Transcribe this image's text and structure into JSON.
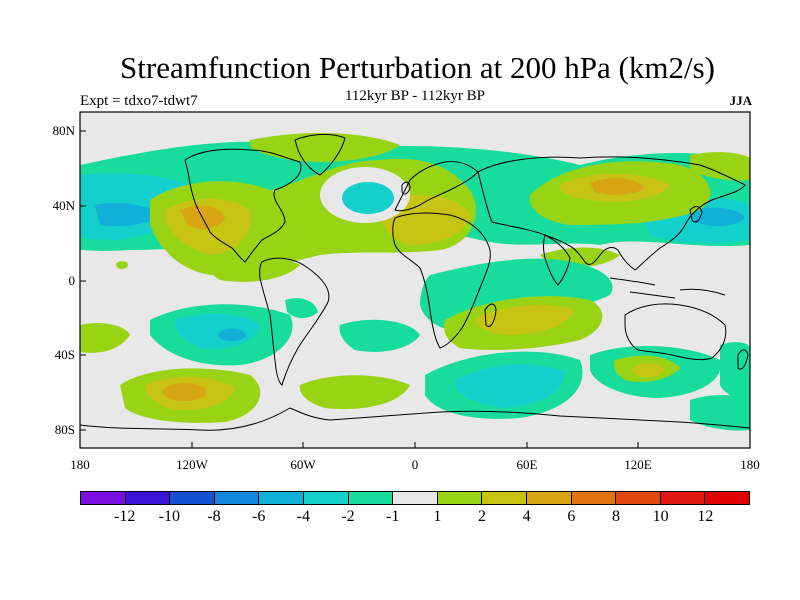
{
  "title": "Streamfunction Perturbation at 200 hPa (km2/s)",
  "subtitle_left": "Expt = tdxo7-tdwt7",
  "subtitle_center": "112kyr BP - 112kyr BP",
  "subtitle_right": "JJA",
  "map_data": {
    "region": "Global (180W-180E, 90S-90N)",
    "lat_ticks": [
      "80N",
      "40N",
      "0",
      "40S",
      "80S"
    ],
    "lon_ticks": [
      "180",
      "120W",
      "60W",
      "0",
      "60E",
      "120E",
      "180"
    ]
  },
  "colorbar": {
    "labels": [
      "-12",
      "-10",
      "-8",
      "-6",
      "-4",
      "-2",
      "-1",
      "1",
      "2",
      "4",
      "6",
      "8",
      "10",
      "12"
    ],
    "colors": [
      "#7a0ee0",
      "#3a14d8",
      "#1450d0",
      "#1488dc",
      "#10b0d8",
      "#14d0cc",
      "#18dc9c",
      "#e8e8e8",
      "#98d414",
      "#c8c414",
      "#d8a414",
      "#e07410",
      "#e04810",
      "#e01810",
      "#e00000"
    ]
  },
  "palette": {
    "bg_field": "#e8e8e8",
    "neg_weak": "#18dc9c",
    "neg_mid": "#14d0cc",
    "neg_strong": "#10b0d8",
    "pos_weak": "#98d414",
    "pos_mid": "#c8c414",
    "pos_strong": "#d8a414",
    "pos_stronger": "#e07410"
  }
}
